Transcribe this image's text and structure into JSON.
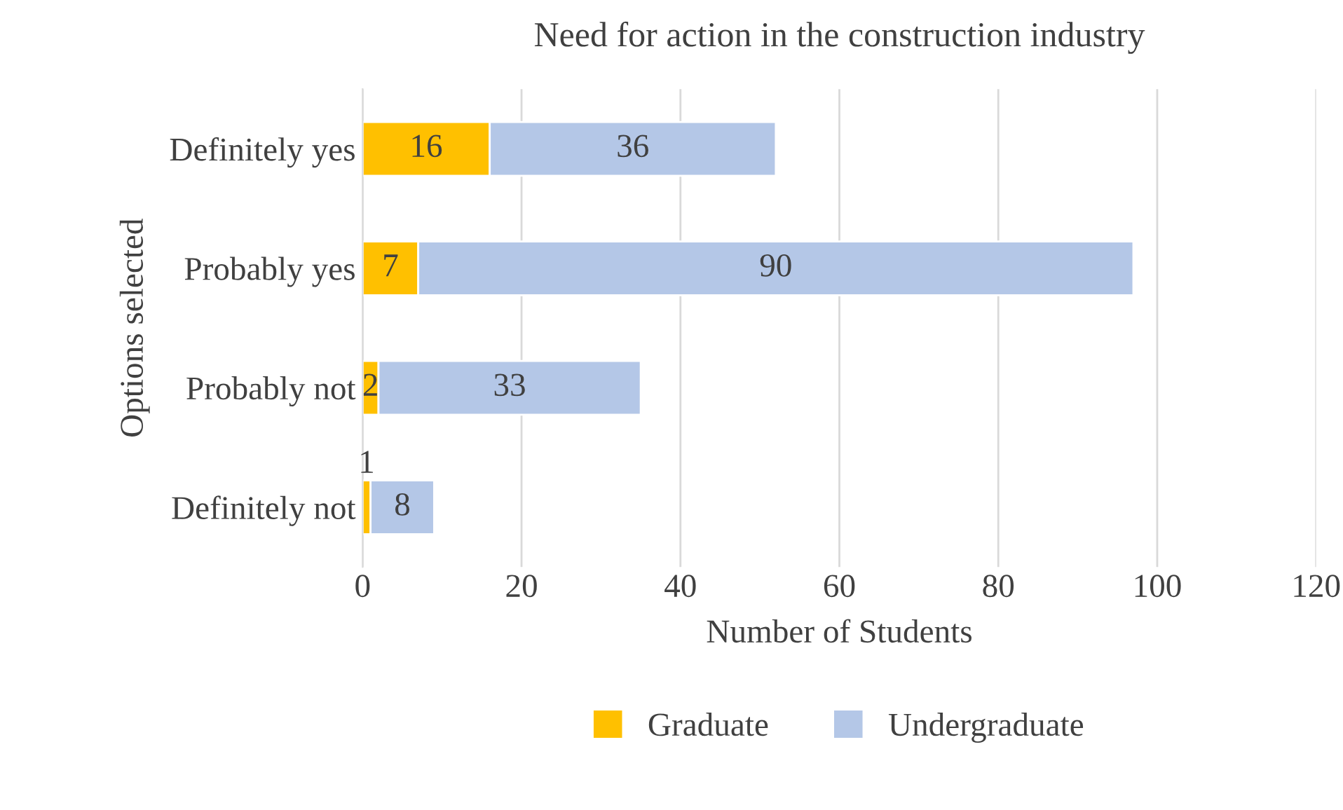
{
  "chart_data": {
    "type": "bar",
    "orientation": "horizontal",
    "stacked": true,
    "title": "Need for action in the construction industry",
    "xlabel": "Number of Students",
    "ylabel": "Options selected",
    "categories": [
      "Definitely yes",
      "Probably yes",
      "Probably not",
      "Definitely not"
    ],
    "series": [
      {
        "name": "Graduate",
        "color": "#ffc000",
        "values": [
          16,
          7,
          2,
          1
        ]
      },
      {
        "name": "Undergraduate",
        "color": "#b4c7e7",
        "values": [
          36,
          90,
          33,
          8
        ]
      }
    ],
    "xlim": [
      0,
      120
    ],
    "xticks": [
      0,
      20,
      40,
      60,
      80,
      100,
      120
    ],
    "grid": "x",
    "legend": "bottom",
    "data_labels": true
  }
}
